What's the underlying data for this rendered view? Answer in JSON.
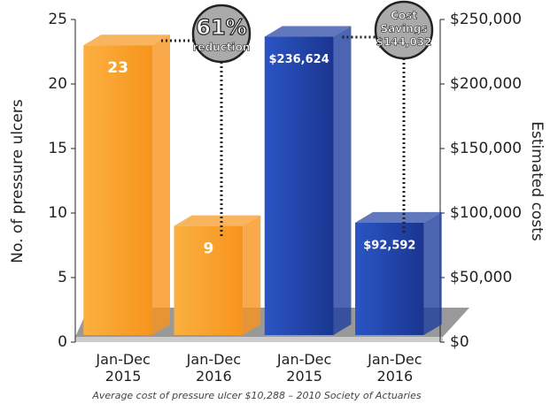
{
  "chart_data": {
    "type": "bar3d",
    "categories": [
      "Jan-Dec 2015",
      "Jan-Dec 2016",
      "Jan-Dec 2015",
      "Jan-Dec 2016"
    ],
    "series": [
      {
        "color": "#f7941d",
        "values": [
          23,
          9,
          null,
          null
        ]
      },
      {
        "color": "#1f3fa0",
        "axis": "y2",
        "values": [
          null,
          null,
          236624,
          92592
        ],
        "value_labels": [
          null,
          null,
          "$236,624",
          "$92,592"
        ]
      }
    ],
    "ylabel": "No. of pressure ulcers",
    "y2label": "Estimated costs",
    "ylim": [
      0,
      25
    ],
    "yticks": [
      0,
      5,
      10,
      15,
      20,
      25
    ],
    "y2lim": [
      0,
      250000
    ],
    "y2ticks": [
      {
        "value": 0,
        "label": "$0"
      },
      {
        "value": 50000,
        "label": "$50,000"
      },
      {
        "value": 100000,
        "label": "$100,000"
      },
      {
        "value": 150000,
        "label": "$150,000"
      },
      {
        "value": 200000,
        "label": "$200,000"
      },
      {
        "value": 250000,
        "label": "$250,000"
      }
    ],
    "annotations": [
      {
        "lines": [
          "61%",
          "reduction"
        ]
      },
      {
        "lines": [
          "Cost",
          "Savings",
          "$144,032"
        ]
      }
    ],
    "footnote": "Average cost of pressure ulcer $10,288 – 2010 Society of Actuaries"
  }
}
